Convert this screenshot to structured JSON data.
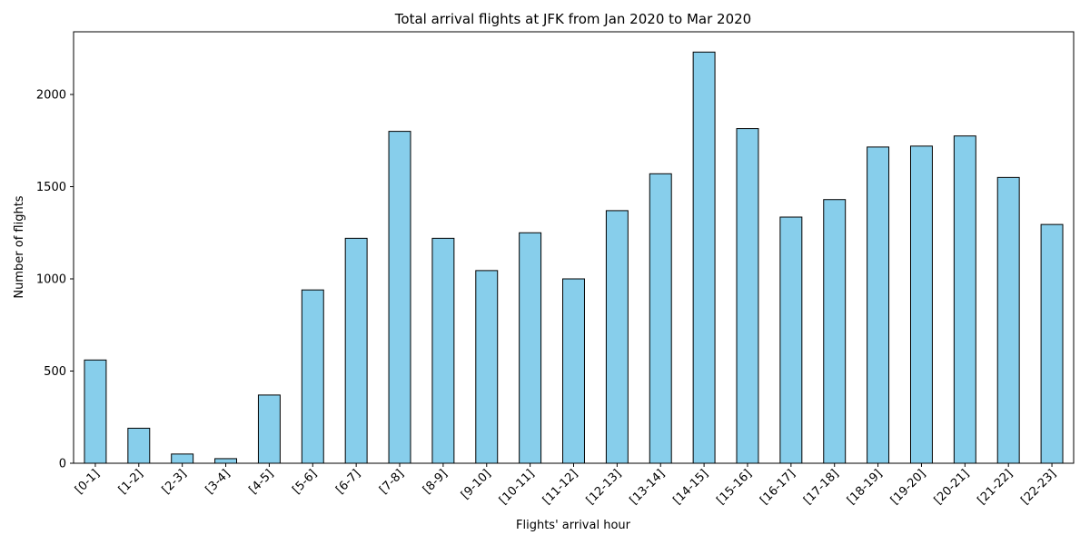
{
  "chart_data": {
    "type": "bar",
    "title": "Total arrival flights at JFK from Jan 2020 to Mar 2020",
    "xlabel": "Flights' arrival hour",
    "ylabel": "Number of flights",
    "categories": [
      "[0-1]",
      "[1-2]",
      "[2-3]",
      "[3-4]",
      "[4-5]",
      "[5-6]",
      "[6-7]",
      "[7-8]",
      "[8-9]",
      "[9-10]",
      "[10-11]",
      "[11-12]",
      "[12-13]",
      "[13-14]",
      "[14-15]",
      "[15-16]",
      "[16-17]",
      "[17-18]",
      "[18-19]",
      "[19-20]",
      "[20-21]",
      "[21-22]",
      "[22-23]"
    ],
    "values": [
      560,
      190,
      50,
      25,
      370,
      940,
      1220,
      1800,
      1220,
      1045,
      1250,
      1000,
      1370,
      1570,
      2230,
      1815,
      1335,
      1430,
      1715,
      1720,
      1775,
      1550,
      1295
    ],
    "ylim": [
      0,
      2340
    ],
    "yticks": [
      0,
      500,
      1000,
      1500,
      2000
    ],
    "grid": false,
    "bar_color": "#87ceeb",
    "edge_color": "#000000"
  }
}
